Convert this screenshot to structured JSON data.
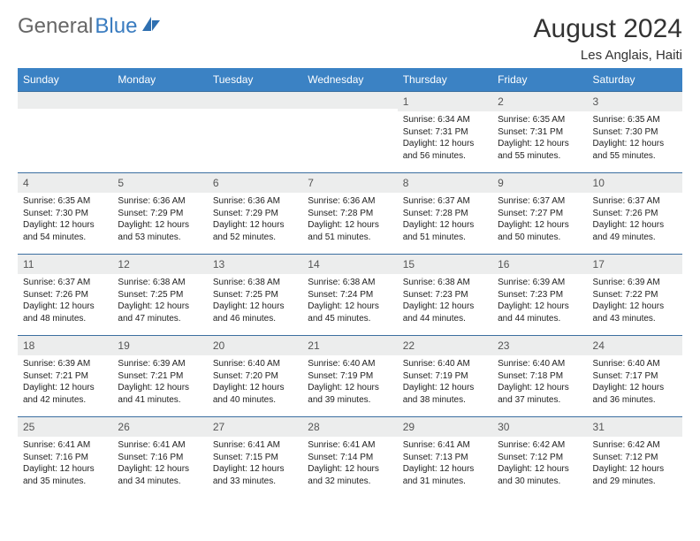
{
  "brand": {
    "word1": "General",
    "word2": "Blue"
  },
  "title": "August 2024",
  "location": "Les Anglais, Haiti",
  "colors": {
    "header_bg": "#3b82c4",
    "header_text": "#ffffff",
    "daynum_bg": "#eceded",
    "border_top": "#3b6fa0",
    "logo_gray": "#666666",
    "logo_blue": "#3a7cc0"
  },
  "day_headers": [
    "Sunday",
    "Monday",
    "Tuesday",
    "Wednesday",
    "Thursday",
    "Friday",
    "Saturday"
  ],
  "weeks": [
    [
      null,
      null,
      null,
      null,
      {
        "n": "1",
        "sr": "6:34 AM",
        "ss": "7:31 PM",
        "dl": "12 hours and 56 minutes."
      },
      {
        "n": "2",
        "sr": "6:35 AM",
        "ss": "7:31 PM",
        "dl": "12 hours and 55 minutes."
      },
      {
        "n": "3",
        "sr": "6:35 AM",
        "ss": "7:30 PM",
        "dl": "12 hours and 55 minutes."
      }
    ],
    [
      {
        "n": "4",
        "sr": "6:35 AM",
        "ss": "7:30 PM",
        "dl": "12 hours and 54 minutes."
      },
      {
        "n": "5",
        "sr": "6:36 AM",
        "ss": "7:29 PM",
        "dl": "12 hours and 53 minutes."
      },
      {
        "n": "6",
        "sr": "6:36 AM",
        "ss": "7:29 PM",
        "dl": "12 hours and 52 minutes."
      },
      {
        "n": "7",
        "sr": "6:36 AM",
        "ss": "7:28 PM",
        "dl": "12 hours and 51 minutes."
      },
      {
        "n": "8",
        "sr": "6:37 AM",
        "ss": "7:28 PM",
        "dl": "12 hours and 51 minutes."
      },
      {
        "n": "9",
        "sr": "6:37 AM",
        "ss": "7:27 PM",
        "dl": "12 hours and 50 minutes."
      },
      {
        "n": "10",
        "sr": "6:37 AM",
        "ss": "7:26 PM",
        "dl": "12 hours and 49 minutes."
      }
    ],
    [
      {
        "n": "11",
        "sr": "6:37 AM",
        "ss": "7:26 PM",
        "dl": "12 hours and 48 minutes."
      },
      {
        "n": "12",
        "sr": "6:38 AM",
        "ss": "7:25 PM",
        "dl": "12 hours and 47 minutes."
      },
      {
        "n": "13",
        "sr": "6:38 AM",
        "ss": "7:25 PM",
        "dl": "12 hours and 46 minutes."
      },
      {
        "n": "14",
        "sr": "6:38 AM",
        "ss": "7:24 PM",
        "dl": "12 hours and 45 minutes."
      },
      {
        "n": "15",
        "sr": "6:38 AM",
        "ss": "7:23 PM",
        "dl": "12 hours and 44 minutes."
      },
      {
        "n": "16",
        "sr": "6:39 AM",
        "ss": "7:23 PM",
        "dl": "12 hours and 44 minutes."
      },
      {
        "n": "17",
        "sr": "6:39 AM",
        "ss": "7:22 PM",
        "dl": "12 hours and 43 minutes."
      }
    ],
    [
      {
        "n": "18",
        "sr": "6:39 AM",
        "ss": "7:21 PM",
        "dl": "12 hours and 42 minutes."
      },
      {
        "n": "19",
        "sr": "6:39 AM",
        "ss": "7:21 PM",
        "dl": "12 hours and 41 minutes."
      },
      {
        "n": "20",
        "sr": "6:40 AM",
        "ss": "7:20 PM",
        "dl": "12 hours and 40 minutes."
      },
      {
        "n": "21",
        "sr": "6:40 AM",
        "ss": "7:19 PM",
        "dl": "12 hours and 39 minutes."
      },
      {
        "n": "22",
        "sr": "6:40 AM",
        "ss": "7:19 PM",
        "dl": "12 hours and 38 minutes."
      },
      {
        "n": "23",
        "sr": "6:40 AM",
        "ss": "7:18 PM",
        "dl": "12 hours and 37 minutes."
      },
      {
        "n": "24",
        "sr": "6:40 AM",
        "ss": "7:17 PM",
        "dl": "12 hours and 36 minutes."
      }
    ],
    [
      {
        "n": "25",
        "sr": "6:41 AM",
        "ss": "7:16 PM",
        "dl": "12 hours and 35 minutes."
      },
      {
        "n": "26",
        "sr": "6:41 AM",
        "ss": "7:16 PM",
        "dl": "12 hours and 34 minutes."
      },
      {
        "n": "27",
        "sr": "6:41 AM",
        "ss": "7:15 PM",
        "dl": "12 hours and 33 minutes."
      },
      {
        "n": "28",
        "sr": "6:41 AM",
        "ss": "7:14 PM",
        "dl": "12 hours and 32 minutes."
      },
      {
        "n": "29",
        "sr": "6:41 AM",
        "ss": "7:13 PM",
        "dl": "12 hours and 31 minutes."
      },
      {
        "n": "30",
        "sr": "6:42 AM",
        "ss": "7:12 PM",
        "dl": "12 hours and 30 minutes."
      },
      {
        "n": "31",
        "sr": "6:42 AM",
        "ss": "7:12 PM",
        "dl": "12 hours and 29 minutes."
      }
    ]
  ],
  "labels": {
    "sunrise": "Sunrise:",
    "sunset": "Sunset:",
    "daylight": "Daylight:"
  }
}
